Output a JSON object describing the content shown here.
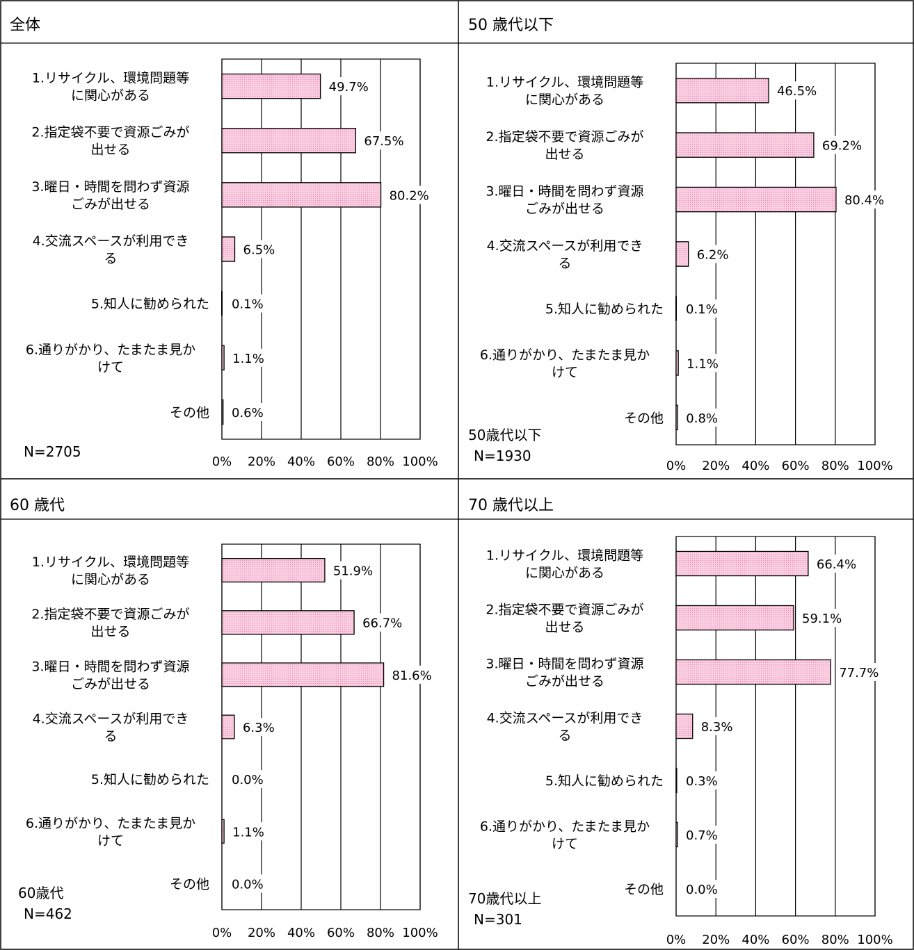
{
  "colors": {
    "bar_fill": "#f9c5dc",
    "bar_stroke": "#000000",
    "grid": "#000000"
  },
  "chart_data": [
    {
      "type": "bar",
      "orientation": "horizontal",
      "title": "全体",
      "categories": [
        [
          "1.リサイクル、環境問題等",
          "に関心がある"
        ],
        [
          "2.指定袋不要で資源ごみが",
          "出せる"
        ],
        [
          "3.曜日・時間を問わず資源",
          "ごみが出せる"
        ],
        [
          "4.交流スペースが利用でき",
          "る"
        ],
        [
          "5.知人に勧められた"
        ],
        [
          "6.通りがかり、たまたま見か",
          "けて"
        ],
        [
          "その他"
        ]
      ],
      "values": [
        49.7,
        67.5,
        80.2,
        6.5,
        0.1,
        1.1,
        0.6
      ],
      "value_labels": [
        "49.7%",
        "67.5%",
        "80.2%",
        "6.5%",
        "0.1%",
        "1.1%",
        "0.6%"
      ],
      "xlim": [
        0,
        100
      ],
      "ticks": [
        "0%",
        "20%",
        "40%",
        "60%",
        "80%",
        "100%"
      ],
      "note_lines": [
        "N=2705"
      ],
      "grid": true
    },
    {
      "type": "bar",
      "orientation": "horizontal",
      "title": "50 歳代以下",
      "categories": [
        [
          "1.リサイクル、環境問題等",
          "に関心がある"
        ],
        [
          "2.指定袋不要で資源ごみが",
          "出せる"
        ],
        [
          "3.曜日・時間を問わず資源",
          "ごみが出せる"
        ],
        [
          "4.交流スペースが利用でき",
          "る"
        ],
        [
          "5.知人に勧められた"
        ],
        [
          "6.通りがかり、たまたま見か",
          "けて"
        ],
        [
          "その他"
        ]
      ],
      "values": [
        46.5,
        69.2,
        80.4,
        6.2,
        0.1,
        1.1,
        0.8
      ],
      "value_labels": [
        "46.5%",
        "69.2%",
        "80.4%",
        "6.2%",
        "0.1%",
        "1.1%",
        "0.8%"
      ],
      "xlim": [
        0,
        100
      ],
      "ticks": [
        "0%",
        "20%",
        "40%",
        "60%",
        "80%",
        "100%"
      ],
      "note_lines": [
        "50歳代以下",
        "N=1930"
      ],
      "grid": true
    },
    {
      "type": "bar",
      "orientation": "horizontal",
      "title": "60 歳代",
      "categories": [
        [
          "1.リサイクル、環境問題等",
          "に関心がある"
        ],
        [
          "2.指定袋不要で資源ごみが",
          "出せる"
        ],
        [
          "3.曜日・時間を問わず資源",
          "ごみが出せる"
        ],
        [
          "4.交流スペースが利用でき",
          "る"
        ],
        [
          "5.知人に勧められた"
        ],
        [
          "6.通りがかり、たまたま見か",
          "けて"
        ],
        [
          "その他"
        ]
      ],
      "values": [
        51.9,
        66.7,
        81.6,
        6.3,
        0.0,
        1.1,
        0.0
      ],
      "value_labels": [
        "51.9%",
        "66.7%",
        "81.6%",
        "6.3%",
        "0.0%",
        "1.1%",
        "0.0%"
      ],
      "xlim": [
        0,
        100
      ],
      "ticks": [
        "0%",
        "20%",
        "40%",
        "60%",
        "80%",
        "100%"
      ],
      "note_lines": [
        "60歳代",
        "N=462"
      ],
      "grid": true
    },
    {
      "type": "bar",
      "orientation": "horizontal",
      "title": "70 歳代以上",
      "categories": [
        [
          "1.リサイクル、環境問題等",
          "に関心がある"
        ],
        [
          "2.指定袋不要で資源ごみが",
          "出せる"
        ],
        [
          "3.曜日・時間を問わず資源",
          "ごみが出せる"
        ],
        [
          "4.交流スペースが利用でき",
          "る"
        ],
        [
          "5.知人に勧められた"
        ],
        [
          "6.通りがかり、たまたま見か",
          "けて"
        ],
        [
          "その他"
        ]
      ],
      "values": [
        66.4,
        59.1,
        77.7,
        8.3,
        0.3,
        0.7,
        0.0
      ],
      "value_labels": [
        "66.4%",
        "59.1%",
        "77.7%",
        "8.3%",
        "0.3%",
        "0.7%",
        "0.0%"
      ],
      "xlim": [
        0,
        100
      ],
      "ticks": [
        "0%",
        "20%",
        "40%",
        "60%",
        "80%",
        "100%"
      ],
      "note_lines": [
        "70歳代以上",
        "N=301"
      ],
      "grid": true
    }
  ]
}
